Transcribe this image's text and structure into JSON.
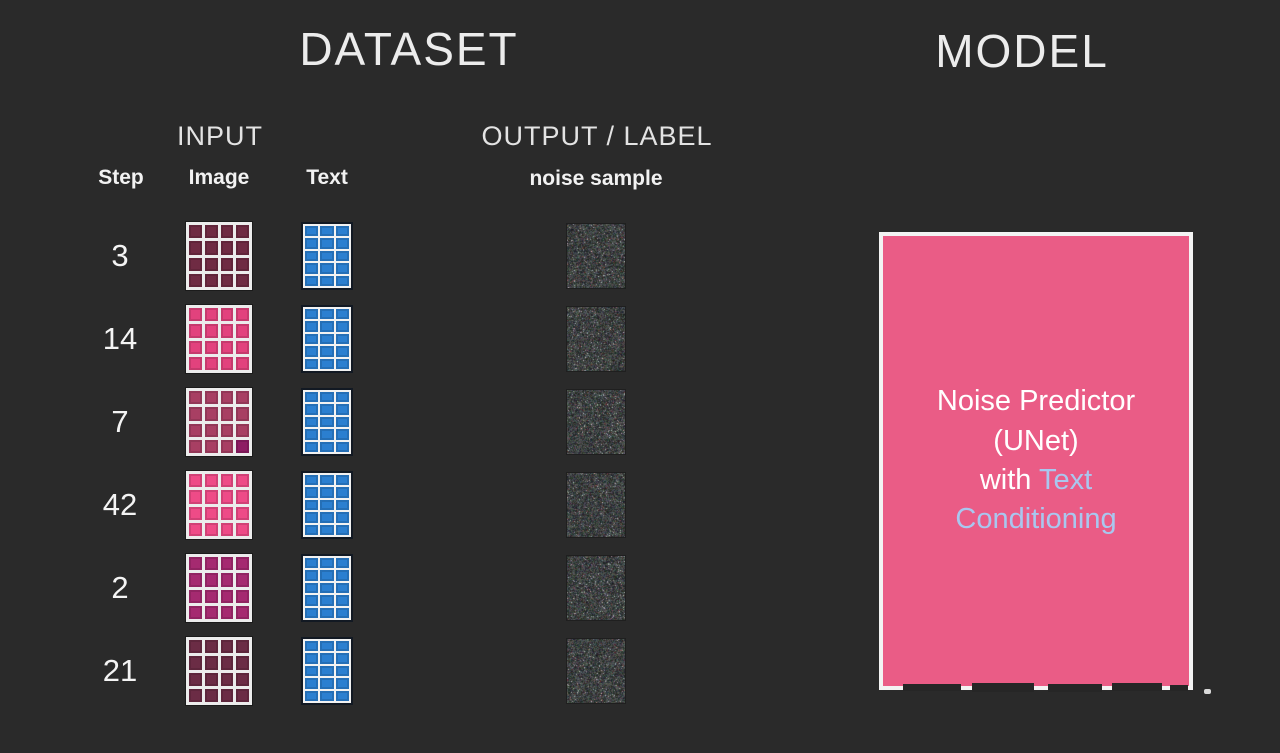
{
  "background": "#2a2a2a",
  "titles": {
    "dataset": "DATASET",
    "model": "MODEL"
  },
  "dataset": {
    "group_headers": {
      "input": "INPUT",
      "output": "OUTPUT / LABEL"
    },
    "columns": {
      "step": "Step",
      "image": "Image",
      "text": "Text",
      "noise": "noise sample"
    },
    "image_grid": {
      "cols": 4,
      "rows": 4
    },
    "text_grid": {
      "cols": 3,
      "rows": 5,
      "cell_color": "#2b7fd0"
    },
    "rows": [
      {
        "step": "3",
        "image_color": "#6f2b43"
      },
      {
        "step": "14",
        "image_color": "#e2427d"
      },
      {
        "step": "7",
        "image_color": "#a83f63",
        "accent_cell": {
          "index": 15,
          "color": "#8e1c63"
        }
      },
      {
        "step": "42",
        "image_color": "#ee4b87"
      },
      {
        "step": "2",
        "image_color": "#a52a70"
      },
      {
        "step": "21",
        "image_color": "#6b2c45"
      }
    ]
  },
  "model": {
    "box_color": "#ea5c86",
    "text_color_primary": "#ffffff",
    "text_color_accent": "#a9c7ef",
    "label_segments": [
      {
        "text": "Noise Predictor\n(UNet)\nwith ",
        "color": "#ffffff"
      },
      {
        "text": "Text\nConditioning",
        "color": "#a9c7ef"
      }
    ]
  }
}
